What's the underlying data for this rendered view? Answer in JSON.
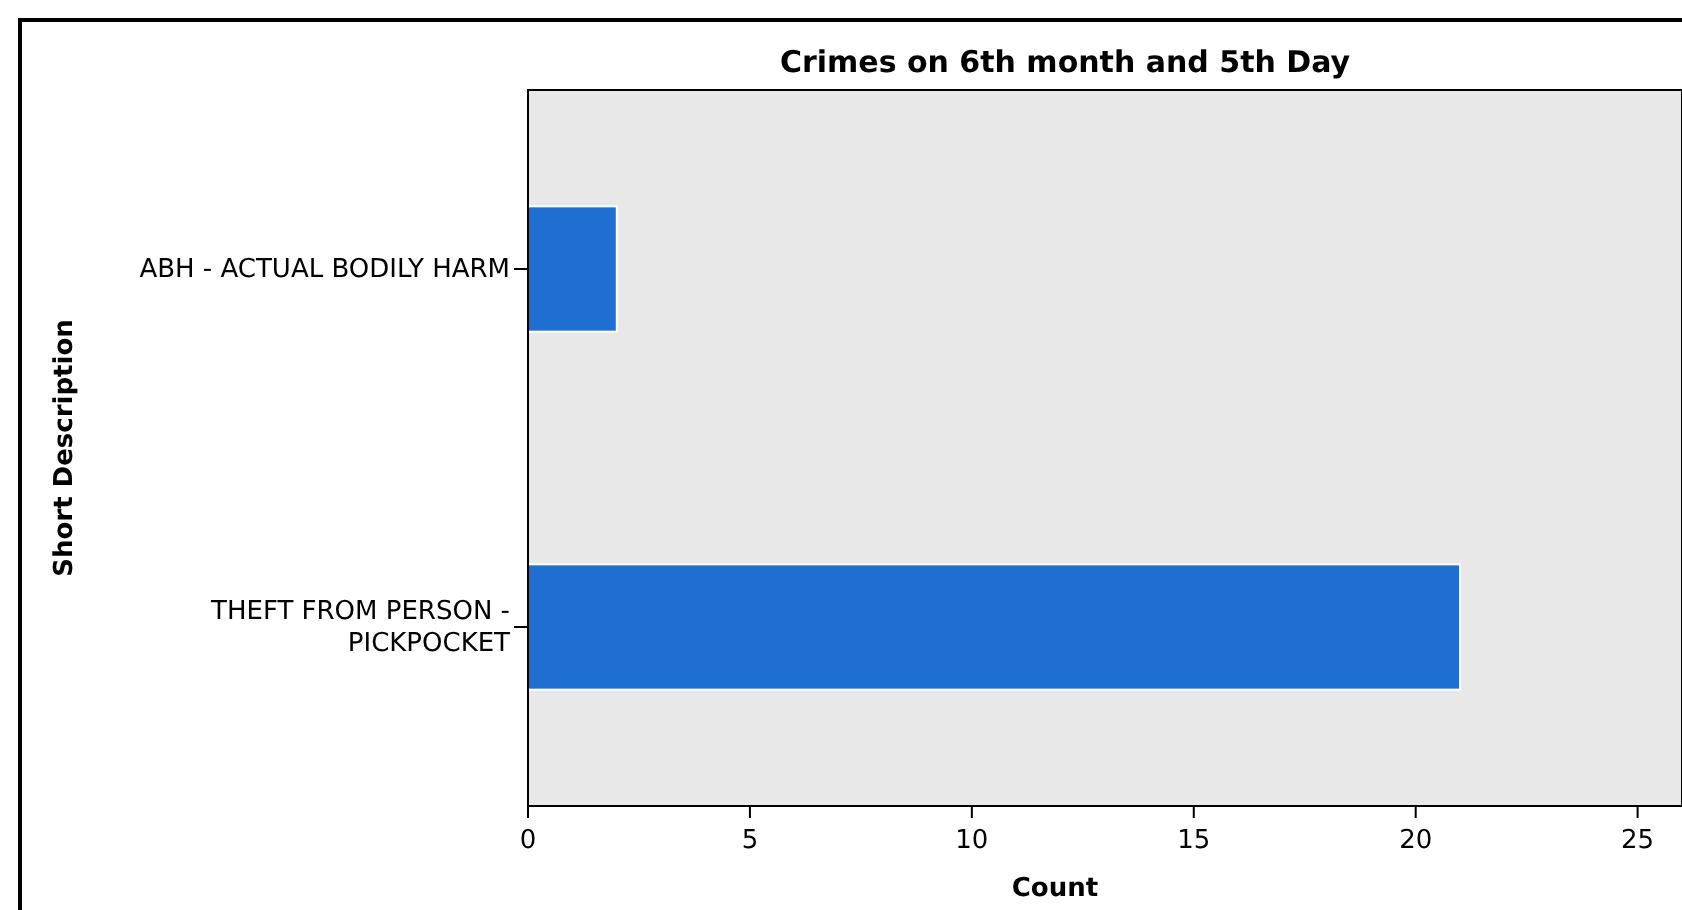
{
  "chart_data": {
    "type": "bar",
    "orientation": "horizontal",
    "title": "Crimes on 6th month and 5th Day",
    "xlabel": "Count",
    "ylabel": "Short Description",
    "categories": [
      "ABH - ACTUAL BODILY HARM",
      "THEFT FROM PERSON - PICKPOCKET"
    ],
    "values": [
      2,
      21
    ],
    "color": "#1f6fd2",
    "xlim": [
      0,
      26
    ],
    "xticks": [
      0,
      5,
      10,
      15,
      20,
      25
    ],
    "grid": false
  }
}
